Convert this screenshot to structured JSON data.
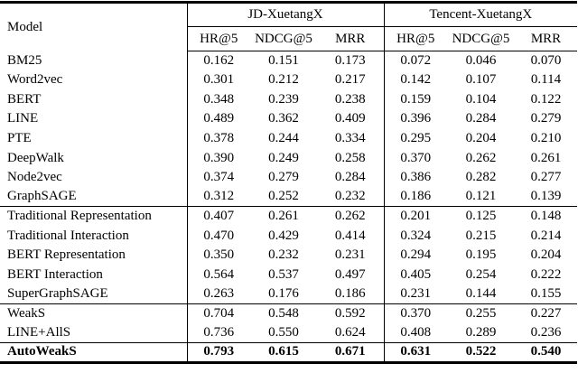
{
  "table": {
    "model_header": "Model",
    "groups": [
      {
        "label": "JD-XuetangX",
        "columns": [
          "HR@5",
          "NDCG@5",
          "MRR"
        ]
      },
      {
        "label": "Tencent-XuetangX",
        "columns": [
          "HR@5",
          "NDCG@5",
          "MRR"
        ]
      }
    ],
    "sections": [
      {
        "name": "unsupervised-baselines",
        "rows": [
          {
            "model": "BM25",
            "values": [
              "0.162",
              "0.151",
              "0.173",
              "0.072",
              "0.046",
              "0.070"
            ],
            "bold": false
          },
          {
            "model": "Word2vec",
            "values": [
              "0.301",
              "0.212",
              "0.217",
              "0.142",
              "0.107",
              "0.114"
            ],
            "bold": false
          },
          {
            "model": "BERT",
            "values": [
              "0.348",
              "0.239",
              "0.238",
              "0.159",
              "0.104",
              "0.122"
            ],
            "bold": false
          },
          {
            "model": "LINE",
            "values": [
              "0.489",
              "0.362",
              "0.409",
              "0.396",
              "0.284",
              "0.279"
            ],
            "bold": false
          },
          {
            "model": "PTE",
            "values": [
              "0.378",
              "0.244",
              "0.334",
              "0.295",
              "0.204",
              "0.210"
            ],
            "bold": false
          },
          {
            "model": "DeepWalk",
            "values": [
              "0.390",
              "0.249",
              "0.258",
              "0.370",
              "0.262",
              "0.261"
            ],
            "bold": false
          },
          {
            "model": "Node2vec",
            "values": [
              "0.374",
              "0.279",
              "0.284",
              "0.386",
              "0.282",
              "0.277"
            ],
            "bold": false
          },
          {
            "model": "GraphSAGE",
            "values": [
              "0.312",
              "0.252",
              "0.232",
              "0.186",
              "0.121",
              "0.139"
            ],
            "bold": false
          }
        ]
      },
      {
        "name": "supervised-baselines",
        "rows": [
          {
            "model": "Traditional Representation",
            "values": [
              "0.407",
              "0.261",
              "0.262",
              "0.201",
              "0.125",
              "0.148"
            ],
            "bold": false
          },
          {
            "model": "Traditional Interaction",
            "values": [
              "0.470",
              "0.429",
              "0.414",
              "0.324",
              "0.215",
              "0.214"
            ],
            "bold": false
          },
          {
            "model": "BERT Representation",
            "values": [
              "0.350",
              "0.232",
              "0.231",
              "0.294",
              "0.195",
              "0.204"
            ],
            "bold": false
          },
          {
            "model": "BERT Interaction",
            "values": [
              "0.564",
              "0.537",
              "0.497",
              "0.405",
              "0.254",
              "0.222"
            ],
            "bold": false
          },
          {
            "model": "SuperGraphSAGE",
            "values": [
              "0.263",
              "0.176",
              "0.186",
              "0.231",
              "0.144",
              "0.155"
            ],
            "bold": false
          }
        ]
      },
      {
        "name": "weak-supervision-variants",
        "rows": [
          {
            "model": "WeakS",
            "values": [
              "0.704",
              "0.548",
              "0.592",
              "0.370",
              "0.255",
              "0.227"
            ],
            "bold": false
          },
          {
            "model": "LINE+AllS",
            "values": [
              "0.736",
              "0.550",
              "0.624",
              "0.408",
              "0.289",
              "0.236"
            ],
            "bold": false
          }
        ]
      },
      {
        "name": "proposed-model",
        "rows": [
          {
            "model": "AutoWeakS",
            "values": [
              "0.793",
              "0.615",
              "0.671",
              "0.631",
              "0.522",
              "0.540"
            ],
            "bold": true
          }
        ]
      }
    ]
  },
  "chart_data": {
    "type": "table",
    "title": "",
    "column_groups": [
      "JD-XuetangX",
      "Tencent-XuetangX"
    ],
    "columns": [
      "Model",
      "JD HR@5",
      "JD NDCG@5",
      "JD MRR",
      "Tencent HR@5",
      "Tencent NDCG@5",
      "Tencent MRR"
    ],
    "rows": [
      [
        "BM25",
        0.162,
        0.151,
        0.173,
        0.072,
        0.046,
        0.07
      ],
      [
        "Word2vec",
        0.301,
        0.212,
        0.217,
        0.142,
        0.107,
        0.114
      ],
      [
        "BERT",
        0.348,
        0.239,
        0.238,
        0.159,
        0.104,
        0.122
      ],
      [
        "LINE",
        0.489,
        0.362,
        0.409,
        0.396,
        0.284,
        0.279
      ],
      [
        "PTE",
        0.378,
        0.244,
        0.334,
        0.295,
        0.204,
        0.21
      ],
      [
        "DeepWalk",
        0.39,
        0.249,
        0.258,
        0.37,
        0.262,
        0.261
      ],
      [
        "Node2vec",
        0.374,
        0.279,
        0.284,
        0.386,
        0.282,
        0.277
      ],
      [
        "GraphSAGE",
        0.312,
        0.252,
        0.232,
        0.186,
        0.121,
        0.139
      ],
      [
        "Traditional Representation",
        0.407,
        0.261,
        0.262,
        0.201,
        0.125,
        0.148
      ],
      [
        "Traditional Interaction",
        0.47,
        0.429,
        0.414,
        0.324,
        0.215,
        0.214
      ],
      [
        "BERT Representation",
        0.35,
        0.232,
        0.231,
        0.294,
        0.195,
        0.204
      ],
      [
        "BERT Interaction",
        0.564,
        0.537,
        0.497,
        0.405,
        0.254,
        0.222
      ],
      [
        "SuperGraphSAGE",
        0.263,
        0.176,
        0.186,
        0.231,
        0.144,
        0.155
      ],
      [
        "WeakS",
        0.704,
        0.548,
        0.592,
        0.37,
        0.255,
        0.227
      ],
      [
        "LINE+AllS",
        0.736,
        0.55,
        0.624,
        0.408,
        0.289,
        0.236
      ],
      [
        "AutoWeakS",
        0.793,
        0.615,
        0.671,
        0.631,
        0.522,
        0.54
      ]
    ]
  }
}
